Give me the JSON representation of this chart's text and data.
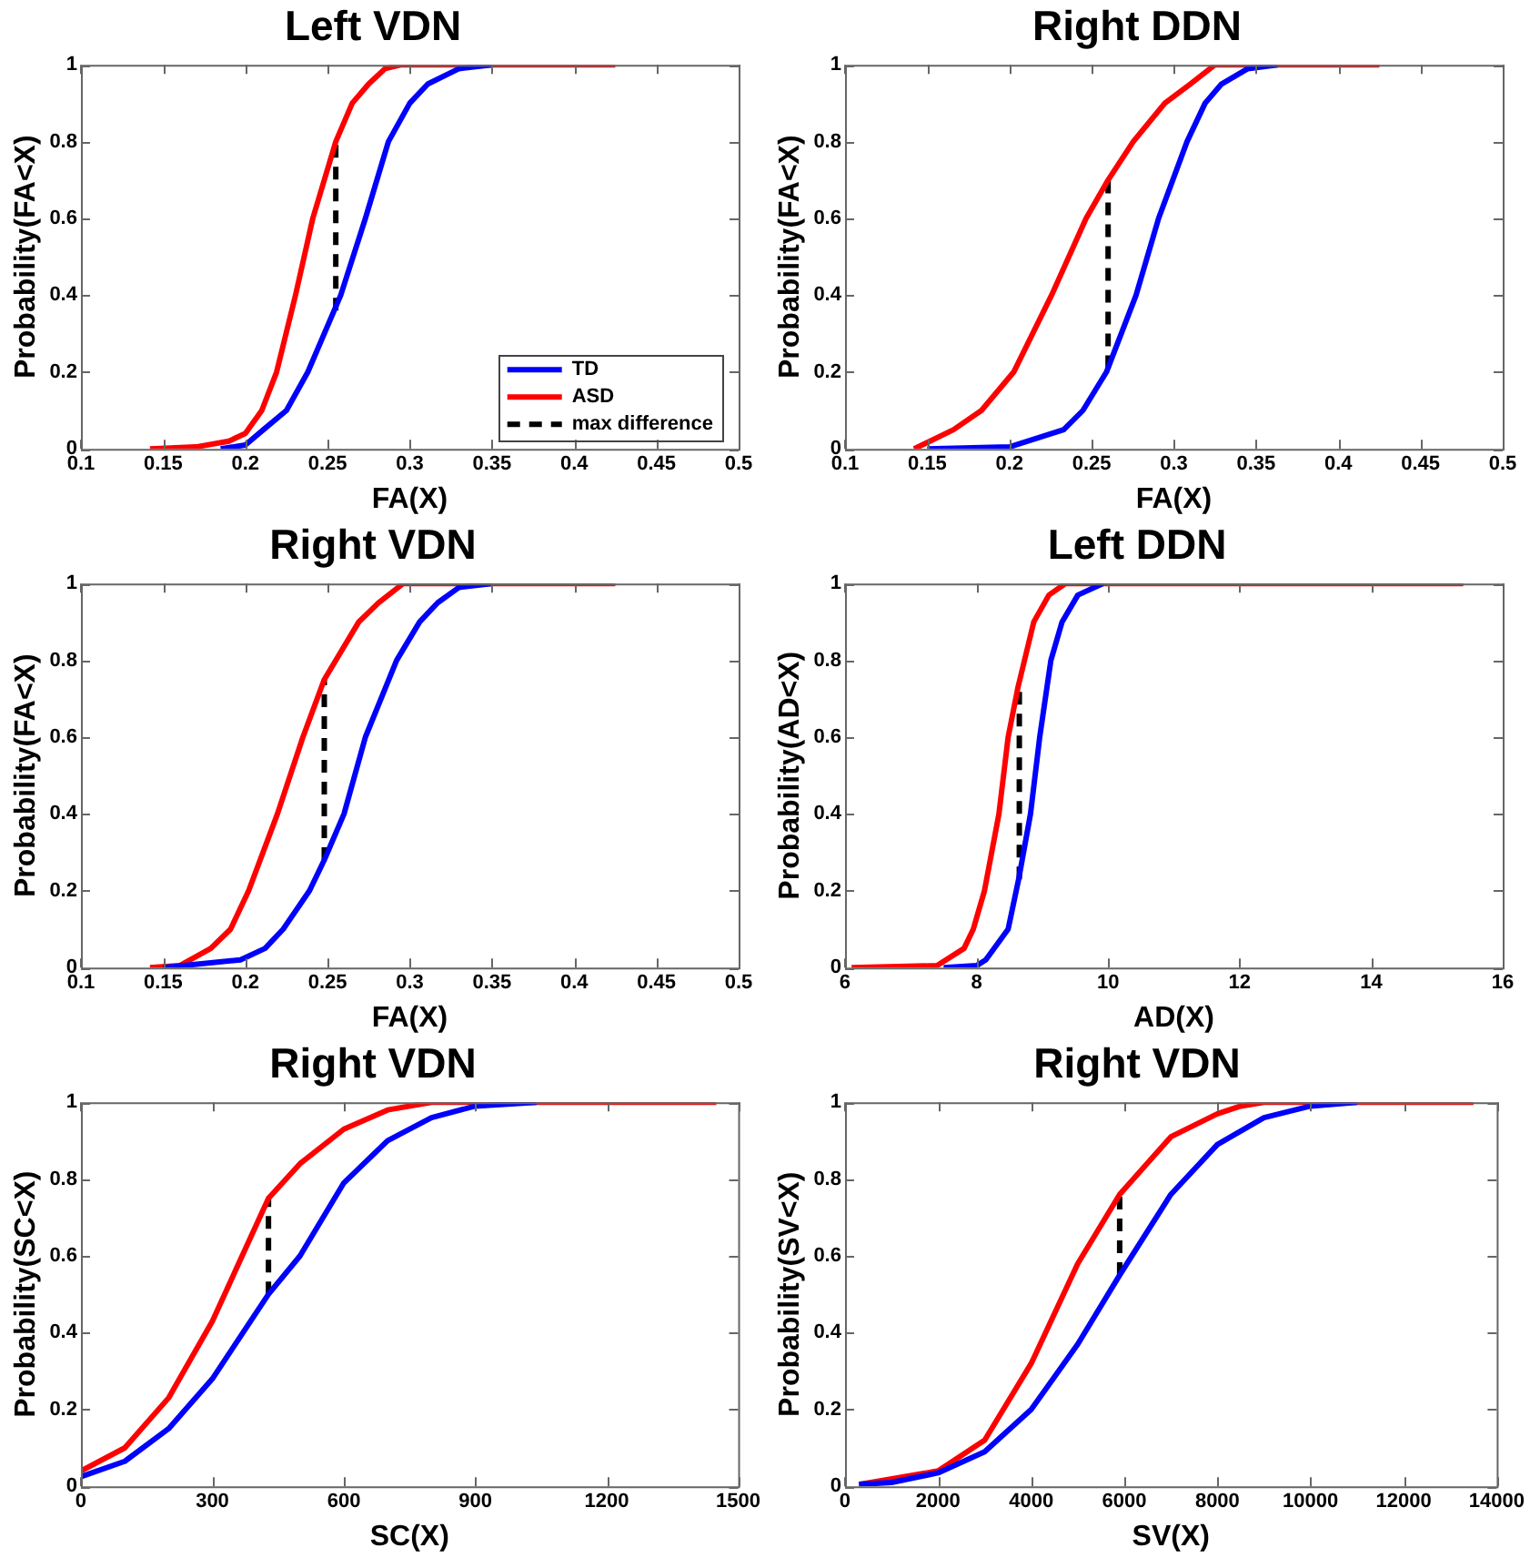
{
  "chart_data": [
    {
      "type": "line",
      "title": "Left VDN",
      "xlabel": "FA(X)",
      "ylabel": "Probability(FA<X)",
      "xlim": [
        0.1,
        0.5
      ],
      "xticks": [
        0.1,
        0.15,
        0.2,
        0.25,
        0.3,
        0.35,
        0.4,
        0.45,
        0.5
      ],
      "ylim": [
        0,
        1
      ],
      "yticks": [
        0,
        0.2,
        0.4,
        0.6,
        0.8,
        1
      ],
      "legend": "bottom right",
      "marker": "none",
      "series": [
        {
          "name": "TD",
          "color": "#0000ff",
          "x": [
            0.185,
            0.2,
            0.211,
            0.225,
            0.238,
            0.258,
            0.273,
            0.287,
            0.3,
            0.311,
            0.33,
            0.35
          ],
          "values": [
            0,
            0.01,
            0.05,
            0.1,
            0.2,
            0.4,
            0.6,
            0.8,
            0.9,
            0.95,
            0.99,
            1
          ]
        },
        {
          "name": "ASD",
          "color": "#ff0000",
          "x": [
            0.142,
            0.17,
            0.19,
            0.2,
            0.21,
            0.219,
            0.2305,
            0.241,
            0.255,
            0.265,
            0.275,
            0.285,
            0.295,
            0.425
          ],
          "values": [
            0,
            0.005,
            0.02,
            0.04,
            0.1,
            0.2,
            0.4,
            0.6,
            0.8,
            0.9,
            0.95,
            0.99,
            1,
            1
          ]
        },
        {
          "name": "max difference",
          "color": "#000000",
          "line_style": "dashed",
          "x": [
            0.255,
            0.255
          ],
          "values": [
            0.36,
            0.8
          ]
        }
      ]
    },
    {
      "type": "line",
      "title": "Right DDN",
      "xlabel": "FA(X)",
      "ylabel": "Probability(FA<X)",
      "xlim": [
        0.1,
        0.5
      ],
      "xticks": [
        0.1,
        0.15,
        0.2,
        0.25,
        0.3,
        0.35,
        0.4,
        0.45,
        0.5
      ],
      "ylim": [
        0,
        1
      ],
      "yticks": [
        0,
        0.2,
        0.4,
        0.6,
        0.8,
        1
      ],
      "legend": false,
      "marker": "none",
      "series": [
        {
          "color": "#0000ff",
          "x": [
            0.15,
            0.2,
            0.233,
            0.2447,
            0.259,
            0.277,
            0.2907,
            0.308,
            0.319,
            0.329,
            0.345,
            0.363
          ],
          "values": [
            0,
            0.005,
            0.05,
            0.1,
            0.2,
            0.4,
            0.6,
            0.8,
            0.9,
            0.95,
            0.99,
            1
          ]
        },
        {
          "color": "#ff0000",
          "x": [
            0.142,
            0.166,
            0.183,
            0.2026,
            0.2256,
            0.2466,
            0.26,
            0.2753,
            0.2945,
            0.31,
            0.325,
            0.425
          ],
          "values": [
            0,
            0.05,
            0.1,
            0.2,
            0.4,
            0.6,
            0.7,
            0.8,
            0.9,
            0.95,
            1,
            1
          ]
        },
        {
          "color": "#000000",
          "line_style": "dashed",
          "x": [
            0.26,
            0.26
          ],
          "values": [
            0.21,
            0.7
          ]
        }
      ]
    },
    {
      "type": "line",
      "title": "Right VDN",
      "xlabel": "FA(X)",
      "ylabel": "Probability(FA<X)",
      "xlim": [
        0.1,
        0.5
      ],
      "xticks": [
        0.1,
        0.15,
        0.2,
        0.25,
        0.3,
        0.35,
        0.4,
        0.45,
        0.5
      ],
      "ylim": [
        0,
        1
      ],
      "yticks": [
        0,
        0.2,
        0.4,
        0.6,
        0.8,
        1
      ],
      "legend": false,
      "marker": "none",
      "series": [
        {
          "color": "#0000ff",
          "x": [
            0.15,
            0.197,
            0.212,
            0.223,
            0.239,
            0.248,
            0.26,
            0.273,
            0.292,
            0.306,
            0.317,
            0.33,
            0.35
          ],
          "values": [
            0,
            0.02,
            0.05,
            0.1,
            0.2,
            0.28,
            0.4,
            0.6,
            0.8,
            0.9,
            0.95,
            0.99,
            1
          ]
        },
        {
          "color": "#ff0000",
          "x": [
            0.142,
            0.16,
            0.179,
            0.191,
            0.202,
            0.2195,
            0.235,
            0.248,
            0.269,
            0.281,
            0.296,
            0.425
          ],
          "values": [
            0,
            0.005,
            0.05,
            0.1,
            0.2,
            0.4,
            0.6,
            0.75,
            0.9,
            0.95,
            1,
            1
          ]
        },
        {
          "color": "#000000",
          "line_style": "dashed",
          "x": [
            0.248,
            0.248
          ],
          "values": [
            0.28,
            0.75
          ]
        }
      ]
    },
    {
      "type": "line",
      "title": "Left DDN",
      "xlabel": "AD(X)",
      "ylabel": "Probability(AD<X)",
      "xlim": [
        6,
        16
      ],
      "xticks": [
        6,
        8,
        10,
        12,
        14,
        16
      ],
      "ylim": [
        0,
        1
      ],
      "yticks": [
        0,
        0.2,
        0.4,
        0.6,
        0.8,
        1
      ],
      "legend": false,
      "marker": "none",
      "series": [
        {
          "color": "#0000ff",
          "x": [
            7.5,
            8,
            8.14,
            8.48,
            8.64,
            8.82,
            8.96,
            9.13,
            9.3,
            9.54,
            9.92
          ],
          "values": [
            0,
            0.005,
            0.02,
            0.1,
            0.23,
            0.4,
            0.6,
            0.8,
            0.9,
            0.97,
            1
          ]
        },
        {
          "color": "#ff0000",
          "x": [
            6.1,
            7.4,
            7.81,
            7.95,
            8.12,
            8.34,
            8.48,
            8.63,
            8.87,
            9.1,
            9.35,
            15.4
          ],
          "values": [
            0,
            0.005,
            0.05,
            0.1,
            0.2,
            0.4,
            0.6,
            0.73,
            0.9,
            0.97,
            1,
            1
          ]
        },
        {
          "color": "#000000",
          "line_style": "dashed",
          "x": [
            8.65,
            8.65
          ],
          "values": [
            0.23,
            0.73
          ]
        }
      ]
    },
    {
      "type": "line",
      "title": "Right VDN",
      "xlabel": "SC(X)",
      "ylabel": "Probability(SC<X)",
      "xlim": [
        0,
        1500
      ],
      "xticks": [
        0,
        300,
        600,
        900,
        1200,
        1500
      ],
      "ylim": [
        0,
        1
      ],
      "yticks": [
        0,
        0.2,
        0.4,
        0.6,
        0.8,
        1
      ],
      "legend": false,
      "marker": "none",
      "series": [
        {
          "color": "#0000ff",
          "x": [
            0,
            100,
            200,
            300,
            428,
            500,
            600,
            700,
            800,
            900,
            1040
          ],
          "values": [
            0.025,
            0.065,
            0.15,
            0.28,
            0.5,
            0.6,
            0.79,
            0.9,
            0.96,
            0.99,
            1
          ]
        },
        {
          "color": "#ff0000",
          "x": [
            0,
            100,
            200,
            300,
            400,
            428,
            500,
            600,
            700,
            800,
            1450
          ],
          "values": [
            0.04,
            0.1,
            0.23,
            0.43,
            0.68,
            0.75,
            0.84,
            0.93,
            0.98,
            1,
            1
          ]
        },
        {
          "color": "#000000",
          "line_style": "dashed",
          "x": [
            428,
            428
          ],
          "values": [
            0.5,
            0.75
          ]
        }
      ]
    },
    {
      "type": "line",
      "title": "Right VDN",
      "xlabel": "SV(X)",
      "ylabel": "Probability(SV<X)",
      "xlim": [
        0,
        14000
      ],
      "xticks": [
        0,
        2000,
        4000,
        6000,
        8000,
        10000,
        12000,
        14000
      ],
      "ylim": [
        0,
        1
      ],
      "yticks": [
        0,
        0.2,
        0.4,
        0.6,
        0.8,
        1
      ],
      "legend": false,
      "marker": "none",
      "series": [
        {
          "color": "#0000ff",
          "x": [
            300,
            1000,
            2000,
            3000,
            4000,
            5000,
            5900,
            7000,
            8000,
            9000,
            10000,
            11000
          ],
          "values": [
            0.005,
            0.01,
            0.035,
            0.09,
            0.2,
            0.37,
            0.55,
            0.76,
            0.89,
            0.96,
            0.99,
            1
          ]
        },
        {
          "color": "#ff0000",
          "x": [
            300,
            2000,
            3000,
            4000,
            5000,
            5900,
            7000,
            8000,
            8500,
            9000,
            13500
          ],
          "values": [
            0.005,
            0.04,
            0.12,
            0.32,
            0.58,
            0.76,
            0.91,
            0.97,
            0.99,
            1,
            1
          ]
        },
        {
          "color": "#000000",
          "line_style": "dashed",
          "x": [
            5900,
            5900
          ],
          "values": [
            0.55,
            0.76
          ]
        }
      ]
    }
  ]
}
